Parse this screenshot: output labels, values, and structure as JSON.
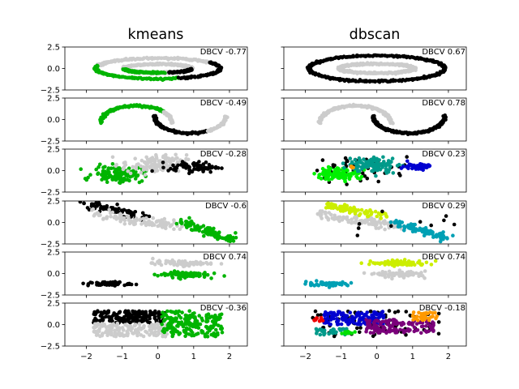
{
  "chart_data": {
    "type": "scatter",
    "xlim": [
      -2.6,
      2.5
    ],
    "ylim": [
      -2.5,
      2.5
    ],
    "x_ticks": [
      -2,
      -1,
      0,
      1,
      2
    ],
    "y_ticks": [
      2.5,
      0.0,
      -2.5
    ],
    "x_tick_labels": [
      "−2",
      "−1",
      "0",
      "1",
      "2"
    ],
    "y_tick_labels": [
      "2.5",
      "0.0",
      "−2.5"
    ],
    "grid": false,
    "columns": [
      {
        "title": "kmeans",
        "panels": [
          {
            "dataset": "circles",
            "annotation": "DBCV -0.77",
            "clusters": [
              {
                "color": "#cccccc",
                "shape": "arc",
                "cx": 0,
                "cy": 0,
                "rx": 0.95,
                "ry": 0.5,
                "a0": 0,
                "a1": 360
              },
              {
                "color": "#cccccc",
                "shape": "arc",
                "cx": 0,
                "cy": 0,
                "rx": 1.75,
                "ry": 1.2,
                "a0": 35,
                "a1": 165
              },
              {
                "color": "#00b400",
                "shape": "arc",
                "cx": 0,
                "cy": 0,
                "rx": 1.75,
                "ry": 1.2,
                "a0": 165,
                "a1": 290
              },
              {
                "color": "#00b400",
                "shape": "arc",
                "cx": 0,
                "cy": 0,
                "rx": 0.95,
                "ry": 0.5,
                "a0": 190,
                "a1": 280
              },
              {
                "color": "#000000",
                "shape": "arc",
                "cx": 0,
                "cy": 0,
                "rx": 1.75,
                "ry": 1.2,
                "a0": 290,
                "a1": 395
              },
              {
                "color": "#000000",
                "shape": "arc",
                "cx": 0,
                "cy": 0,
                "rx": 0.95,
                "ry": 0.5,
                "a0": 290,
                "a1": 350
              }
            ]
          },
          {
            "dataset": "moons",
            "annotation": "DBCV -0.49",
            "clusters": [
              {
                "color": "#00b400",
                "shape": "arc",
                "cx": -0.6,
                "cy": -0.4,
                "rx": 1.0,
                "ry": 2.0,
                "a0": 40,
                "a1": 180
              },
              {
                "color": "#cccccc",
                "shape": "arc",
                "cx": -0.6,
                "cy": -0.4,
                "rx": 1.0,
                "ry": 2.0,
                "a0": 0,
                "a1": 40
              },
              {
                "color": "#000000",
                "shape": "arc",
                "cx": 0.9,
                "cy": 0.4,
                "rx": 1.0,
                "ry": 2.0,
                "a0": 180,
                "a1": 300
              },
              {
                "color": "#cccccc",
                "shape": "arc",
                "cx": 0.9,
                "cy": 0.4,
                "rx": 1.0,
                "ry": 2.0,
                "a0": 300,
                "a1": 360
              }
            ]
          },
          {
            "dataset": "blobs",
            "annotation": "DBCV -0.28",
            "clusters": [
              {
                "color": "#00b400",
                "shape": "blob",
                "cx": -1.1,
                "cy": -0.4,
                "sx": 0.35,
                "sy": 0.45,
                "n": 130
              },
              {
                "color": "#cccccc",
                "shape": "blob",
                "cx": -0.1,
                "cy": 0.7,
                "sx": 0.45,
                "sy": 0.55,
                "n": 130
              },
              {
                "color": "#000000",
                "shape": "blob",
                "cx": 1.0,
                "cy": 0.4,
                "sx": 0.35,
                "sy": 0.3,
                "n": 70
              }
            ]
          },
          {
            "dataset": "aniso",
            "annotation": "DBCV -0.6",
            "clusters": [
              {
                "color": "#000000",
                "shape": "line",
                "x0": -2.0,
                "y0": 2.2,
                "x1": -0.3,
                "y1": 0.6,
                "w": 0.25,
                "n": 70
              },
              {
                "color": "#cccccc",
                "shape": "line",
                "x0": -1.8,
                "y0": 1.0,
                "x1": 0.6,
                "y1": -0.5,
                "w": 0.3,
                "n": 110
              },
              {
                "color": "#00b400",
                "shape": "line",
                "x0": 0.6,
                "y0": 0.1,
                "x1": 2.1,
                "y1": -2.0,
                "w": 0.25,
                "n": 100
              }
            ]
          },
          {
            "dataset": "varied",
            "annotation": "DBCV 0.74",
            "clusters": [
              {
                "color": "#000000",
                "shape": "blob",
                "cx": -1.35,
                "cy": -1.2,
                "sx": 0.3,
                "sy": 0.12,
                "n": 60
              },
              {
                "color": "#cccccc",
                "shape": "blob",
                "cx": 0.65,
                "cy": 1.2,
                "sx": 0.4,
                "sy": 0.15,
                "n": 80
              },
              {
                "color": "#00b400",
                "shape": "blob",
                "cx": 0.7,
                "cy": -0.1,
                "sx": 0.35,
                "sy": 0.18,
                "n": 80
              }
            ]
          },
          {
            "dataset": "uniform",
            "annotation": "DBCV -0.36",
            "clusters": [
              {
                "color": "#000000",
                "shape": "rect",
                "x0": -1.8,
                "x1": 0.2,
                "y0": 0.2,
                "y1": 1.6,
                "n": 170
              },
              {
                "color": "#cccccc",
                "shape": "rect",
                "x0": -1.8,
                "x1": 0.3,
                "y0": -1.4,
                "y1": 0.2,
                "n": 170
              },
              {
                "color": "#00b400",
                "shape": "rect",
                "x0": 0.1,
                "x1": 1.8,
                "y0": -1.4,
                "y1": 1.6,
                "n": 190
              }
            ]
          }
        ]
      },
      {
        "title": "dbscan",
        "panels": [
          {
            "dataset": "circles",
            "annotation": "DBCV 0.67",
            "clusters": [
              {
                "color": "#000000",
                "shape": "arc",
                "cx": 0,
                "cy": 0,
                "rx": 1.9,
                "ry": 1.5,
                "a0": 0,
                "a1": 360
              },
              {
                "color": "#cccccc",
                "shape": "arc",
                "cx": 0,
                "cy": 0,
                "rx": 1.05,
                "ry": 0.55,
                "a0": 0,
                "a1": 360
              }
            ]
          },
          {
            "dataset": "moons",
            "annotation": "DBCV 0.78",
            "clusters": [
              {
                "color": "#cccccc",
                "shape": "arc",
                "cx": -0.6,
                "cy": -0.4,
                "rx": 1.0,
                "ry": 2.0,
                "a0": 0,
                "a1": 180
              },
              {
                "color": "#000000",
                "shape": "arc",
                "cx": 0.9,
                "cy": 0.4,
                "rx": 1.0,
                "ry": 2.0,
                "a0": 180,
                "a1": 360
              }
            ]
          },
          {
            "dataset": "blobs",
            "annotation": "DBCV 0.23",
            "clusters": [
              {
                "color": "#000000",
                "shape": "blob",
                "cx": -0.4,
                "cy": 0.3,
                "sx": 0.7,
                "sy": 0.7,
                "n": 55
              },
              {
                "color": "#00f000",
                "shape": "blob",
                "cx": -1.1,
                "cy": -0.4,
                "sx": 0.3,
                "sy": 0.35,
                "n": 110
              },
              {
                "color": "#009a8a",
                "shape": "blob",
                "cx": -0.1,
                "cy": 0.7,
                "sx": 0.35,
                "sy": 0.45,
                "n": 110
              },
              {
                "color": "#0000d0",
                "shape": "blob",
                "cx": 1.1,
                "cy": 0.5,
                "sx": 0.2,
                "sy": 0.2,
                "n": 45
              },
              {
                "color": "#ff9900",
                "shape": "blob",
                "cx": -0.7,
                "cy": 0.4,
                "sx": 0.06,
                "sy": 0.06,
                "n": 4
              }
            ]
          },
          {
            "dataset": "aniso",
            "annotation": "DBCV 0.29",
            "clusters": [
              {
                "color": "#cccccc",
                "shape": "line",
                "x0": -1.8,
                "y0": 1.0,
                "x1": 0.6,
                "y1": -0.5,
                "w": 0.25,
                "n": 110
              },
              {
                "color": "#ccee00",
                "shape": "line",
                "x0": -1.4,
                "y0": 2.1,
                "x1": 0.3,
                "y1": 0.7,
                "w": 0.2,
                "n": 80
              },
              {
                "color": "#00a0b4",
                "shape": "line",
                "x0": 0.5,
                "y0": 0.0,
                "x1": 2.0,
                "y1": -1.9,
                "w": 0.2,
                "n": 90
              },
              {
                "color": "#000000",
                "shape": "blob",
                "cx": 0.2,
                "cy": 0.0,
                "sx": 1.3,
                "sy": 1.2,
                "n": 10
              }
            ]
          },
          {
            "dataset": "varied",
            "annotation": "DBCV 0.74",
            "clusters": [
              {
                "color": "#00a0b4",
                "shape": "blob",
                "cx": -1.35,
                "cy": -1.2,
                "sx": 0.3,
                "sy": 0.12,
                "n": 60
              },
              {
                "color": "#ccee00",
                "shape": "blob",
                "cx": 0.65,
                "cy": 1.2,
                "sx": 0.4,
                "sy": 0.15,
                "n": 80
              },
              {
                "color": "#cccccc",
                "shape": "blob",
                "cx": 0.7,
                "cy": -0.1,
                "sx": 0.35,
                "sy": 0.18,
                "n": 80
              }
            ]
          },
          {
            "dataset": "uniform",
            "annotation": "DBCV -0.18",
            "clusters": [
              {
                "color": "#000000",
                "shape": "rect",
                "x0": -1.8,
                "x1": 1.8,
                "y0": -1.4,
                "y1": 1.6,
                "n": 90
              },
              {
                "color": "#0000d0",
                "shape": "rect",
                "x0": -1.5,
                "x1": 0.2,
                "y0": 0.0,
                "y1": 1.5,
                "n": 130
              },
              {
                "color": "#7a007a",
                "shape": "rect",
                "x0": -0.3,
                "x1": 1.6,
                "y0": -1.0,
                "y1": 0.6,
                "n": 130
              },
              {
                "color": "#ff9900",
                "shape": "rect",
                "x0": 1.0,
                "x1": 1.7,
                "y0": 0.5,
                "y1": 1.5,
                "n": 40
              },
              {
                "color": "#009a8a",
                "shape": "rect",
                "x0": -1.7,
                "x1": -0.8,
                "y0": -1.2,
                "y1": -0.5,
                "n": 35
              },
              {
                "color": "#00e000",
                "shape": "rect",
                "x0": -1.0,
                "x1": -0.6,
                "y0": -1.1,
                "y1": -0.8,
                "n": 8
              },
              {
                "color": "#ee0000",
                "shape": "rect",
                "x0": -1.8,
                "x1": -1.5,
                "y0": 0.4,
                "y1": 0.8,
                "n": 10
              }
            ]
          }
        ]
      }
    ]
  }
}
